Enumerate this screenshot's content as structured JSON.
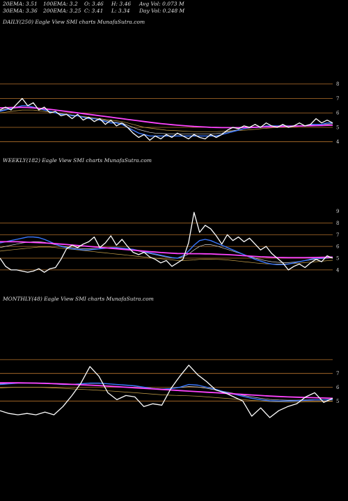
{
  "header": {
    "row1": [
      "20EMA: 3.51",
      "100EMA: 3.2",
      "O: 3.46",
      "H: 3.46",
      "Avg Vol: 0.073 M"
    ],
    "row2": [
      "30EMA: 3.36",
      "200EMA: 3.25",
      "C: 3.41",
      "L: 3.34",
      "Day Vol: 0.248  M"
    ]
  },
  "colors": {
    "background": "#000000",
    "price": "#ffffff",
    "level_line": "#b8742c",
    "ema_short": "#3a78ff",
    "ema_long": "#ff44ff",
    "ema_mid": "#d8d8d8",
    "ema_tan": "#c9a24a"
  },
  "chart_data": [
    {
      "type": "line",
      "title": "DAILY(250) Eagle  View  SMI charts MunafaSutra.com",
      "yticks": [
        "8",
        "7",
        "6",
        "5",
        "4"
      ],
      "ylim": [
        3.6,
        9.0
      ],
      "levels": [
        8,
        7,
        6,
        5,
        4
      ],
      "series": [
        {
          "key": "price",
          "color": "#ffffff",
          "values": [
            6.2,
            6.4,
            6.2,
            6.6,
            7.0,
            6.5,
            6.7,
            6.2,
            6.4,
            6.0,
            6.1,
            5.8,
            5.9,
            5.6,
            5.9,
            5.5,
            5.7,
            5.4,
            5.6,
            5.2,
            5.5,
            5.1,
            5.3,
            5.0,
            4.6,
            4.3,
            4.5,
            4.1,
            4.4,
            4.2,
            4.5,
            4.3,
            4.6,
            4.4,
            4.2,
            4.5,
            4.3,
            4.2,
            4.5,
            4.3,
            4.5,
            4.8,
            5.0,
            4.9,
            5.1,
            5.0,
            5.2,
            5.0,
            5.3,
            5.1,
            5.0,
            5.2,
            5.0,
            5.1,
            5.3,
            5.1,
            5.2,
            5.6,
            5.3,
            5.5,
            5.3
          ]
        },
        {
          "key": "ema_short",
          "color": "#3a78ff",
          "values": [
            6.1,
            6.2,
            6.3,
            6.4,
            6.5,
            6.5,
            6.4,
            6.3,
            6.2,
            6.1,
            6.0,
            5.9,
            5.9,
            5.8,
            5.8,
            5.7,
            5.6,
            5.6,
            5.5,
            5.4,
            5.3,
            5.3,
            5.2,
            5.0,
            4.8,
            4.6,
            4.5,
            4.4,
            4.4,
            4.4,
            4.4,
            4.4,
            4.4,
            4.4,
            4.4,
            4.4,
            4.4,
            4.4,
            4.4,
            4.4,
            4.5,
            4.6,
            4.7,
            4.8,
            4.9,
            5.0,
            5.0,
            5.0,
            5.1,
            5.1,
            5.1,
            5.1,
            5.1,
            5.1,
            5.1,
            5.1,
            5.2,
            5.2,
            5.2,
            5.3,
            5.3
          ]
        },
        {
          "key": "ema_tan",
          "color": "#c9a24a",
          "values": [
            6.0,
            6.05,
            6.1,
            6.15,
            6.2,
            6.2,
            6.2,
            6.15,
            6.1,
            6.05,
            6.0,
            5.95,
            5.9,
            5.85,
            5.8,
            5.75,
            5.7,
            5.65,
            5.6,
            5.55,
            5.5,
            5.45,
            5.4,
            5.3,
            5.2,
            5.1,
            5.0,
            4.95,
            4.9,
            4.85,
            4.8,
            4.78,
            4.76,
            4.74,
            4.72,
            4.7,
            4.7,
            4.7,
            4.7,
            4.7,
            4.72,
            4.74,
            4.76,
            4.78,
            4.8,
            4.83,
            4.86,
            4.9,
            4.93,
            4.96,
            4.99,
            5.0,
            5.02,
            5.04,
            5.06,
            5.08,
            5.1,
            5.12,
            5.14,
            5.16,
            5.18
          ]
        },
        {
          "key": "ema_mid",
          "color": "#d8d8d8",
          "values": [
            6.15,
            6.25,
            6.3,
            6.35,
            6.4,
            6.4,
            6.35,
            6.3,
            6.2,
            6.1,
            6.0,
            5.95,
            5.9,
            5.85,
            5.8,
            5.72,
            5.65,
            5.6,
            5.55,
            5.48,
            5.4,
            5.35,
            5.3,
            5.15,
            5.0,
            4.85,
            4.75,
            4.65,
            4.6,
            4.58,
            4.56,
            4.55,
            4.55,
            4.55,
            4.55,
            4.55,
            4.55,
            4.55,
            4.55,
            4.56,
            4.6,
            4.68,
            4.76,
            4.84,
            4.9,
            4.95,
            4.98,
            5.0,
            5.04,
            5.06,
            5.08,
            5.08,
            5.09,
            5.1,
            5.1,
            5.12,
            5.15,
            5.18,
            5.2,
            5.22,
            5.25
          ]
        },
        {
          "key": "ema_long",
          "color": "#ff44ff",
          "values": [
            6.35,
            6.36,
            6.37,
            6.38,
            6.38,
            6.37,
            6.35,
            6.32,
            6.28,
            6.24,
            6.2,
            6.15,
            6.1,
            6.05,
            6.0,
            5.95,
            5.9,
            5.85,
            5.8,
            5.75,
            5.7,
            5.65,
            5.6,
            5.55,
            5.5,
            5.45,
            5.4,
            5.35,
            5.3,
            5.26,
            5.22,
            5.18,
            5.15,
            5.12,
            5.09,
            5.06,
            5.04,
            5.02,
            5.0,
            4.99,
            4.98,
            4.98,
            4.98,
            4.98,
            4.99,
            5.0,
            5.01,
            5.02,
            5.03,
            5.04,
            5.05,
            5.06,
            5.07,
            5.08,
            5.09,
            5.1,
            5.11,
            5.12,
            5.13,
            5.14,
            5.15
          ]
        }
      ]
    },
    {
      "type": "line",
      "title": "WEEKLY(182) Eagle  View  SMI charts MunafaSutra.com",
      "yticks": [
        "9",
        "8",
        "7",
        "6",
        "5",
        "4"
      ],
      "ylim": [
        3.4,
        9.8
      ],
      "levels": [
        8,
        7,
        6,
        5,
        4
      ],
      "series": [
        {
          "key": "price",
          "color": "#ffffff",
          "values": [
            5.0,
            4.3,
            4.0,
            4.0,
            3.9,
            3.8,
            3.9,
            4.1,
            3.8,
            4.1,
            4.2,
            4.9,
            5.8,
            6.1,
            5.9,
            6.2,
            6.4,
            6.8,
            5.9,
            6.3,
            6.9,
            6.1,
            6.6,
            6.0,
            5.5,
            5.3,
            5.5,
            5.1,
            4.9,
            4.6,
            4.8,
            4.3,
            4.6,
            4.9,
            6.3,
            8.9,
            7.2,
            7.8,
            7.5,
            6.9,
            6.2,
            7.0,
            6.5,
            6.8,
            6.4,
            6.7,
            6.2,
            5.7,
            6.0,
            5.4,
            5.0,
            4.6,
            4.0,
            4.3,
            4.5,
            4.2,
            4.6,
            4.9,
            4.7,
            5.2,
            5.0
          ]
        },
        {
          "key": "ema_short",
          "color": "#3a78ff",
          "values": [
            6.3,
            6.4,
            6.5,
            6.6,
            6.7,
            6.8,
            6.8,
            6.75,
            6.6,
            6.4,
            6.2,
            6.0,
            5.9,
            5.8,
            5.75,
            5.7,
            5.7,
            5.75,
            5.8,
            5.85,
            5.9,
            5.9,
            5.85,
            5.8,
            5.75,
            5.65,
            5.55,
            5.45,
            5.35,
            5.25,
            5.15,
            5.05,
            5.0,
            5.2,
            5.6,
            6.1,
            6.5,
            6.6,
            6.5,
            6.3,
            6.1,
            5.9,
            5.7,
            5.5,
            5.3,
            5.1,
            4.9,
            4.75,
            4.6,
            4.5,
            4.45,
            4.45,
            4.5,
            4.6,
            4.7,
            4.8,
            4.9,
            5.0,
            5.0,
            5.05,
            5.1
          ]
        },
        {
          "key": "ema_tan",
          "color": "#c9a24a",
          "values": [
            5.6,
            5.65,
            5.7,
            5.75,
            5.8,
            5.85,
            5.9,
            5.95,
            5.95,
            5.95,
            5.9,
            5.85,
            5.8,
            5.75,
            5.7,
            5.65,
            5.6,
            5.55,
            5.5,
            5.45,
            5.4,
            5.35,
            5.3,
            5.25,
            5.2,
            5.15,
            5.1,
            5.05,
            5.0,
            4.95,
            4.9,
            4.85,
            4.8,
            4.8,
            4.82,
            4.85,
            4.9,
            4.92,
            4.92,
            4.9,
            4.88,
            4.85,
            4.8,
            4.75,
            4.7,
            4.65,
            4.6,
            4.55,
            4.52,
            4.5,
            4.5,
            4.5,
            4.52,
            4.55,
            4.58,
            4.62,
            4.66,
            4.7,
            4.74,
            4.78,
            4.82
          ]
        },
        {
          "key": "ema_mid",
          "color": "#d8d8d8",
          "values": [
            5.9,
            6.0,
            6.1,
            6.2,
            6.3,
            6.35,
            6.4,
            6.4,
            6.35,
            6.25,
            6.15,
            6.05,
            5.95,
            5.9,
            5.85,
            5.8,
            5.8,
            5.8,
            5.82,
            5.85,
            5.87,
            5.85,
            5.8,
            5.75,
            5.7,
            5.6,
            5.5,
            5.4,
            5.3,
            5.2,
            5.1,
            5.02,
            4.98,
            5.1,
            5.35,
            5.7,
            6.0,
            6.15,
            6.15,
            6.05,
            5.9,
            5.75,
            5.6,
            5.45,
            5.3,
            5.15,
            5.0,
            4.88,
            4.78,
            4.7,
            4.65,
            4.62,
            4.62,
            4.66,
            4.72,
            4.78,
            4.85,
            4.92,
            4.96,
            5.0,
            5.05
          ]
        },
        {
          "key": "ema_long",
          "color": "#ff44ff",
          "values": [
            6.4,
            6.4,
            6.4,
            6.4,
            6.38,
            6.36,
            6.34,
            6.32,
            6.3,
            6.27,
            6.24,
            6.2,
            6.16,
            6.12,
            6.08,
            6.04,
            6.0,
            5.96,
            5.92,
            5.88,
            5.84,
            5.8,
            5.76,
            5.72,
            5.68,
            5.64,
            5.6,
            5.56,
            5.52,
            5.48,
            5.45,
            5.42,
            5.4,
            5.39,
            5.38,
            5.38,
            5.38,
            5.37,
            5.36,
            5.34,
            5.32,
            5.3,
            5.27,
            5.24,
            5.21,
            5.18,
            5.15,
            5.12,
            5.1,
            5.08,
            5.06,
            5.05,
            5.04,
            5.04,
            5.04,
            5.04,
            5.05,
            5.06,
            5.07,
            5.08,
            5.09
          ]
        }
      ]
    },
    {
      "type": "line",
      "title": "MONTHLY(48) Eagle  View  SMI charts MunafaSutra.com",
      "yticks": [
        "7",
        "6",
        "5"
      ],
      "ylim": [
        3.2,
        8.6
      ],
      "levels": [
        8,
        7,
        6,
        5
      ],
      "series": [
        {
          "key": "price",
          "color": "#ffffff",
          "values": [
            4.3,
            4.1,
            4.0,
            4.1,
            4.0,
            4.2,
            4.0,
            4.6,
            5.4,
            6.3,
            7.5,
            6.8,
            5.6,
            5.1,
            5.4,
            5.3,
            4.6,
            4.8,
            4.7,
            5.9,
            6.8,
            7.6,
            6.9,
            6.4,
            5.8,
            5.6,
            5.3,
            5.0,
            3.9,
            4.5,
            3.8,
            4.3,
            4.6,
            4.8,
            5.3,
            5.6,
            4.9,
            5.2
          ]
        },
        {
          "key": "ema_short",
          "color": "#3a78ff",
          "values": [
            6.2,
            6.25,
            6.3,
            6.3,
            6.3,
            6.3,
            6.25,
            6.2,
            6.2,
            6.25,
            6.3,
            6.3,
            6.25,
            6.2,
            6.15,
            6.1,
            6.0,
            5.9,
            5.85,
            5.9,
            6.0,
            6.2,
            6.15,
            6.0,
            5.85,
            5.65,
            5.5,
            5.35,
            5.2,
            5.1,
            5.02,
            5.0,
            5.0,
            5.02,
            5.05,
            5.08,
            5.08,
            5.1
          ]
        },
        {
          "key": "ema_mid",
          "color": "#d8d8d8",
          "values": [
            6.25,
            6.28,
            6.3,
            6.32,
            6.32,
            6.3,
            6.28,
            6.25,
            6.23,
            6.25,
            6.28,
            6.28,
            6.25,
            6.2,
            6.15,
            6.08,
            6.0,
            5.92,
            5.88,
            5.9,
            5.98,
            6.05,
            6.02,
            5.92,
            5.8,
            5.68,
            5.55,
            5.42,
            5.3,
            5.2,
            5.12,
            5.08,
            5.06,
            5.06,
            5.08,
            5.1,
            5.1,
            5.12
          ]
        },
        {
          "key": "ema_tan",
          "color": "#c9a24a",
          "values": [
            5.95,
            5.98,
            6.0,
            6.0,
            6.0,
            5.98,
            5.95,
            5.92,
            5.88,
            5.85,
            5.82,
            5.78,
            5.74,
            5.7,
            5.65,
            5.6,
            5.55,
            5.5,
            5.45,
            5.42,
            5.4,
            5.38,
            5.35,
            5.3,
            5.25,
            5.2,
            5.15,
            5.1,
            5.05,
            5.0,
            4.96,
            4.94,
            4.92,
            4.92,
            4.93,
            4.95,
            4.96,
            4.98
          ]
        },
        {
          "key": "ema_long",
          "color": "#ff44ff",
          "values": [
            6.32,
            6.32,
            6.32,
            6.31,
            6.3,
            6.28,
            6.26,
            6.24,
            6.21,
            6.18,
            6.15,
            6.12,
            6.08,
            6.04,
            6.0,
            5.96,
            5.92,
            5.88,
            5.84,
            5.8,
            5.76,
            5.72,
            5.68,
            5.64,
            5.6,
            5.56,
            5.52,
            5.48,
            5.44,
            5.4,
            5.36,
            5.33,
            5.3,
            5.28,
            5.26,
            5.24,
            5.22,
            5.2
          ]
        }
      ]
    }
  ]
}
